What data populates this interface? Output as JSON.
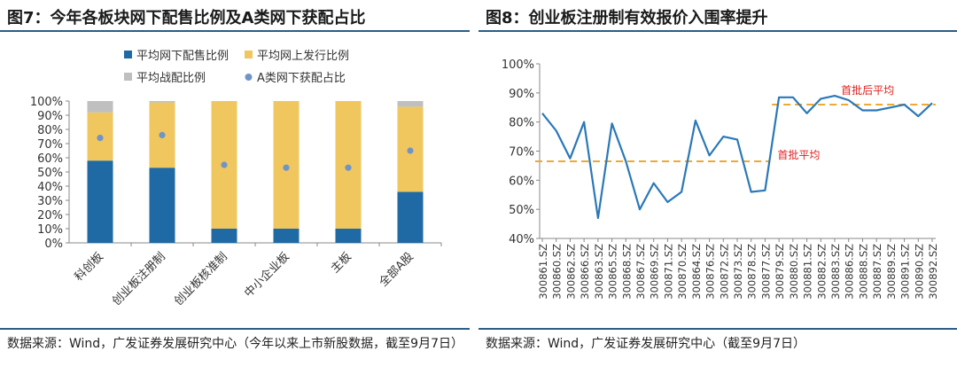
{
  "left": {
    "title": "图7：今年各板块网下配售比例及A类网下获配占比",
    "source": "数据来源：Wind，广发证券发展研究中心（今年以来上市新股数据，截至9月7日）"
  },
  "right": {
    "title": "图8：创业板注册制有效报价入围率提升",
    "source": "数据来源：Wind，广发证券发展研究中心（截至9月7日）"
  },
  "chart_data": [
    {
      "type": "bar",
      "stacked": true,
      "categories": [
        "科创板",
        "创业板注册制",
        "创业板核准制",
        "中小企业板",
        "主板",
        "全部A股"
      ],
      "yticks": [
        "0%",
        "10%",
        "20%",
        "30%",
        "40%",
        "50%",
        "60%",
        "70%",
        "80%",
        "90%",
        "100%"
      ],
      "ylim": [
        0,
        100
      ],
      "legend_position": "top",
      "series": [
        {
          "name": "平均网下配售比例",
          "color": "#1f6aa5",
          "values": [
            58,
            53,
            10,
            10,
            10,
            36
          ]
        },
        {
          "name": "平均网上发行比例",
          "color": "#efc75e",
          "values": [
            34,
            46,
            90,
            90,
            90,
            60
          ]
        },
        {
          "name": "平均战配比例",
          "color": "#bfbfbf",
          "values": [
            8,
            1,
            0,
            0,
            0,
            4
          ]
        }
      ],
      "markers": {
        "name": "A类网下获配占比",
        "color": "#6f94c9",
        "values": [
          74,
          76,
          55,
          53,
          53,
          65
        ]
      }
    },
    {
      "type": "line",
      "categories": [
        "300861.SZ",
        "300860.SZ",
        "300862.SZ",
        "300866.SZ",
        "300863.SZ",
        "300865.SZ",
        "300868.SZ",
        "300867.SZ",
        "300869.SZ",
        "300871.SZ",
        "300870.SZ",
        "300864.SZ",
        "300876.SZ",
        "300872.SZ",
        "300873.SZ",
        "300878.SZ",
        "300877.SZ",
        "300879.SZ",
        "300880.SZ",
        "300881.SZ",
        "300882.SZ",
        "300883.SZ",
        "300886.SZ",
        "300888.SZ",
        "300887.SZ",
        "300889.SZ",
        "300891.SZ",
        "300890.SZ",
        "300892.SZ"
      ],
      "yticks": [
        "40%",
        "50%",
        "60%",
        "70%",
        "80%",
        "90%",
        "100%"
      ],
      "ylim": [
        40,
        100
      ],
      "grid": false,
      "series": [
        {
          "name": "有效报价入围率",
          "color": "#2a78b8",
          "values": [
            83,
            77,
            67.5,
            80,
            47,
            79.5,
            66.5,
            50,
            59,
            52.5,
            56,
            80.5,
            68.5,
            75,
            74,
            56,
            56.5,
            88.5,
            88.5,
            83,
            88,
            89,
            87.5,
            84,
            84,
            85,
            86,
            82,
            86.5
          ]
        }
      ],
      "reference_lines": [
        {
          "label": "首批平均",
          "value": 66.5,
          "color": "#f0a830",
          "from_index": 0,
          "to_index": 16
        },
        {
          "label": "首批后平均",
          "value": 86,
          "color": "#f0a830",
          "from_index": 17,
          "to_index": 28
        }
      ]
    }
  ]
}
